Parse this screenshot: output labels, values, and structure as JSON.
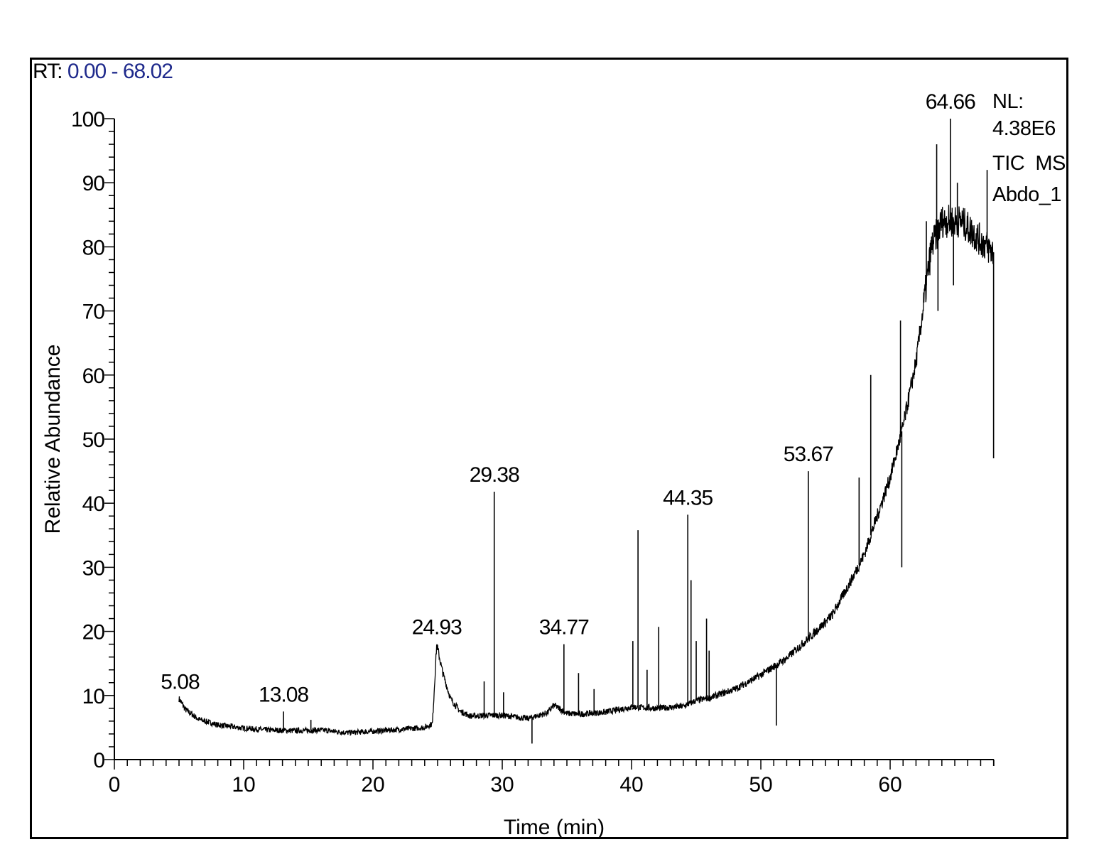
{
  "header": {
    "rt_prefix": "RT:",
    "rt_range": "0.00 - 68.02"
  },
  "info": {
    "nl_label": "NL:",
    "nl_value": "4.38E6",
    "scan_type": "TIC  MS",
    "sample_name": "Abdo_1"
  },
  "colors": {
    "trace": "#000000",
    "rt_value": "#1f2a8c",
    "frame": "#000000"
  },
  "chart_data": {
    "type": "line",
    "xlabel": "Time (min)",
    "ylabel": "Relative Abundance",
    "xlim": [
      0,
      68.02
    ],
    "ylim": [
      0,
      100
    ],
    "x_ticks": [
      0,
      10,
      20,
      30,
      40,
      50,
      60
    ],
    "y_ticks": [
      0,
      10,
      20,
      30,
      40,
      50,
      60,
      70,
      80,
      90,
      100
    ],
    "grid": false,
    "series": [
      {
        "baseline": [
          [
            5.0,
            9.5
          ],
          [
            5.5,
            7.8
          ],
          [
            6.5,
            6.3
          ],
          [
            8,
            5.4
          ],
          [
            10,
            4.9
          ],
          [
            12,
            4.6
          ],
          [
            14,
            4.5
          ],
          [
            16,
            4.6
          ],
          [
            18,
            4.2
          ],
          [
            20,
            4.4
          ],
          [
            22,
            4.7
          ],
          [
            24,
            5.0
          ],
          [
            24.6,
            5.6
          ],
          [
            24.93,
            18.0
          ],
          [
            25.4,
            13.5
          ],
          [
            26,
            9.5
          ],
          [
            26.7,
            7.6
          ],
          [
            27.5,
            6.8
          ],
          [
            29,
            6.9
          ],
          [
            30,
            6.9
          ],
          [
            32,
            6.4
          ],
          [
            33.5,
            7.3
          ],
          [
            34,
            8.5
          ],
          [
            35,
            7.2
          ],
          [
            36,
            7.1
          ],
          [
            38,
            7.4
          ],
          [
            40,
            8.2
          ],
          [
            42,
            8.0
          ],
          [
            44,
            8.3
          ],
          [
            45,
            9.2
          ],
          [
            46,
            9.6
          ],
          [
            48,
            11.0
          ],
          [
            50,
            13.2
          ],
          [
            52,
            15.8
          ],
          [
            54,
            19.5
          ],
          [
            55.5,
            22.5
          ],
          [
            57,
            28.0
          ],
          [
            58,
            32.0
          ],
          [
            59,
            38.0
          ],
          [
            60,
            44.0
          ],
          [
            61,
            52.0
          ],
          [
            62,
            62.0
          ],
          [
            62.6,
            71.0
          ],
          [
            63.2,
            80.0
          ],
          [
            64,
            84.0
          ],
          [
            64.66,
            84.0
          ],
          [
            65.5,
            84.0
          ],
          [
            66.5,
            82.0
          ],
          [
            67.5,
            80.0
          ],
          [
            68.02,
            79.0
          ]
        ],
        "peaks": [
          [
            13.08,
            7.5
          ],
          [
            15.2,
            6.2
          ],
          [
            28.6,
            12.2
          ],
          [
            29.38,
            41.8
          ],
          [
            30.1,
            10.5
          ],
          [
            32.3,
            2.5
          ],
          [
            34.77,
            18.0
          ],
          [
            35.9,
            13.5
          ],
          [
            37.1,
            11.0
          ],
          [
            40.1,
            18.5
          ],
          [
            40.5,
            35.8
          ],
          [
            41.2,
            14.0
          ],
          [
            42.1,
            20.7
          ],
          [
            44.35,
            38.2
          ],
          [
            44.6,
            28.0
          ],
          [
            45.0,
            18.5
          ],
          [
            45.8,
            22.0
          ],
          [
            46.0,
            17.0
          ],
          [
            51.2,
            5.3
          ],
          [
            53.67,
            45.0
          ],
          [
            57.6,
            44.0
          ],
          [
            58.5,
            60.0
          ],
          [
            60.8,
            68.5
          ],
          [
            60.9,
            30.0
          ],
          [
            62.8,
            84.0
          ],
          [
            63.6,
            96.0
          ],
          [
            63.7,
            70.0
          ],
          [
            64.66,
            100.0
          ],
          [
            64.9,
            74.0
          ],
          [
            65.2,
            90.0
          ],
          [
            67.5,
            92.0
          ],
          [
            68.0,
            47.0
          ]
        ]
      }
    ],
    "annotations": [
      {
        "x": 5.08,
        "y": 9.5,
        "text": "5.08"
      },
      {
        "x": 13.08,
        "y": 7.5,
        "text": "13.08"
      },
      {
        "x": 24.93,
        "y": 18.0,
        "text": "24.93"
      },
      {
        "x": 29.38,
        "y": 41.8,
        "text": "29.38"
      },
      {
        "x": 34.77,
        "y": 18.0,
        "text": "34.77"
      },
      {
        "x": 44.35,
        "y": 38.2,
        "text": "44.35"
      },
      {
        "x": 53.67,
        "y": 45.0,
        "text": "53.67"
      },
      {
        "x": 64.66,
        "y": 100.0,
        "text": "64.66"
      }
    ]
  }
}
